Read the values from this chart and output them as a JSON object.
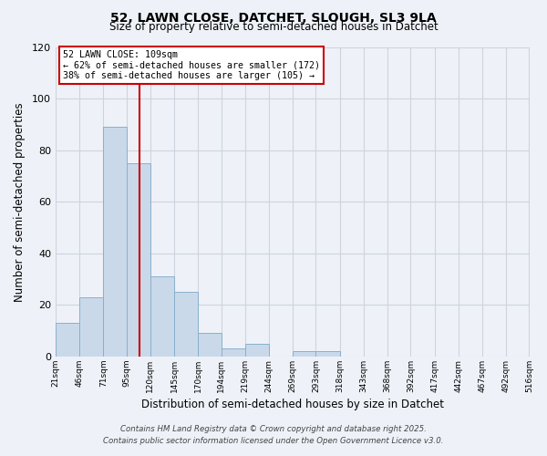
{
  "title1": "52, LAWN CLOSE, DATCHET, SLOUGH, SL3 9LA",
  "title2": "Size of property relative to semi-detached houses in Datchet",
  "xlabel": "Distribution of semi-detached houses by size in Datchet",
  "ylabel": "Number of semi-detached properties",
  "bin_labels": [
    "21sqm",
    "46sqm",
    "71sqm",
    "95sqm",
    "120sqm",
    "145sqm",
    "170sqm",
    "194sqm",
    "219sqm",
    "244sqm",
    "269sqm",
    "293sqm",
    "318sqm",
    "343sqm",
    "368sqm",
    "392sqm",
    "417sqm",
    "442sqm",
    "467sqm",
    "492sqm",
    "516sqm"
  ],
  "bin_edges": [
    21,
    46,
    71,
    95,
    120,
    145,
    170,
    194,
    219,
    244,
    269,
    293,
    318,
    343,
    368,
    392,
    417,
    442,
    467,
    492,
    516
  ],
  "bar_values": [
    13,
    23,
    89,
    75,
    31,
    25,
    9,
    3,
    5,
    0,
    2,
    2,
    0,
    0,
    0,
    0,
    0,
    0,
    0,
    0
  ],
  "bar_color": "#c9d9ea",
  "bar_edge_color": "#8ab0cc",
  "property_value": 109,
  "vline_color": "#cc0000",
  "annotation_title": "52 LAWN CLOSE: 109sqm",
  "annotation_line1": "← 62% of semi-detached houses are smaller (172)",
  "annotation_line2": "38% of semi-detached houses are larger (105) →",
  "annotation_box_color": "#ffffff",
  "annotation_box_edge": "#cc0000",
  "ylim": [
    0,
    120
  ],
  "yticks": [
    0,
    20,
    40,
    60,
    80,
    100,
    120
  ],
  "footer1": "Contains HM Land Registry data © Crown copyright and database right 2025.",
  "footer2": "Contains public sector information licensed under the Open Government Licence v3.0.",
  "bg_color": "#eef2f8",
  "grid_color": "#cdd4de"
}
